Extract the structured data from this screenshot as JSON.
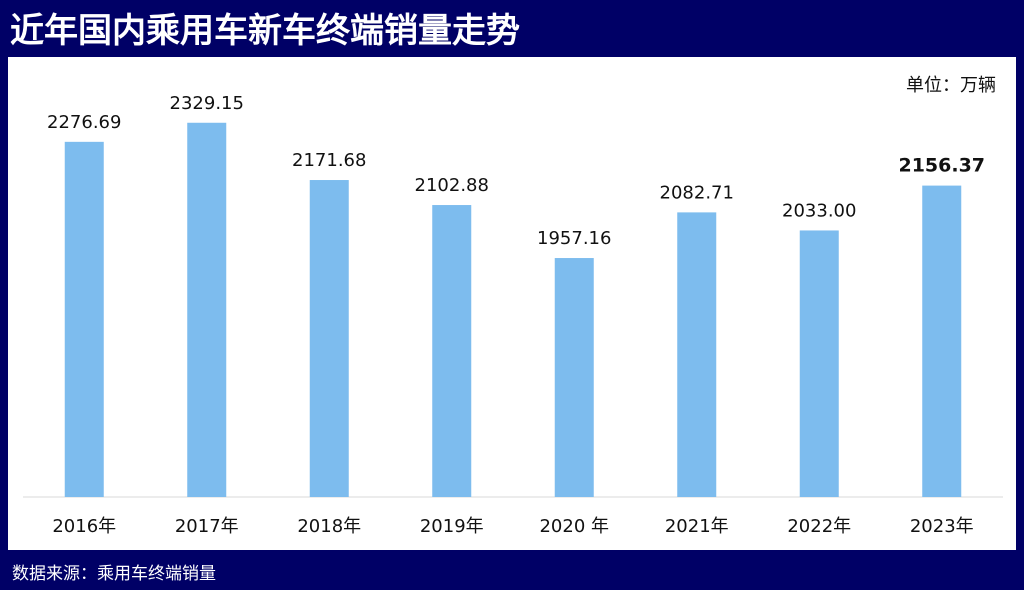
{
  "title": "近年国内乘用车新车终端销量走势",
  "unit": "单位：万辆",
  "source": "数据来源：乘用车终端销量",
  "colors": {
    "background": "#000066",
    "bar": "#7dbcee",
    "panel": "#ffffff"
  },
  "chart_data": {
    "type": "bar",
    "categories": [
      "2016年",
      "2017年",
      "2018年",
      "2019年",
      "2020 年",
      "2021年",
      "2022年",
      "2023年"
    ],
    "values": [
      2276.69,
      2329.15,
      2171.68,
      2102.88,
      1957.16,
      2082.71,
      2033.0,
      2156.37
    ],
    "data_labels": [
      "2276.69",
      "2329.15",
      "2171.68",
      "2102.88",
      "1957.16",
      "2082.71",
      "2033.00",
      "2156.37"
    ],
    "highlight_index": 7,
    "ylim": [
      1300,
      2400
    ],
    "grid": false,
    "legend": "none"
  }
}
